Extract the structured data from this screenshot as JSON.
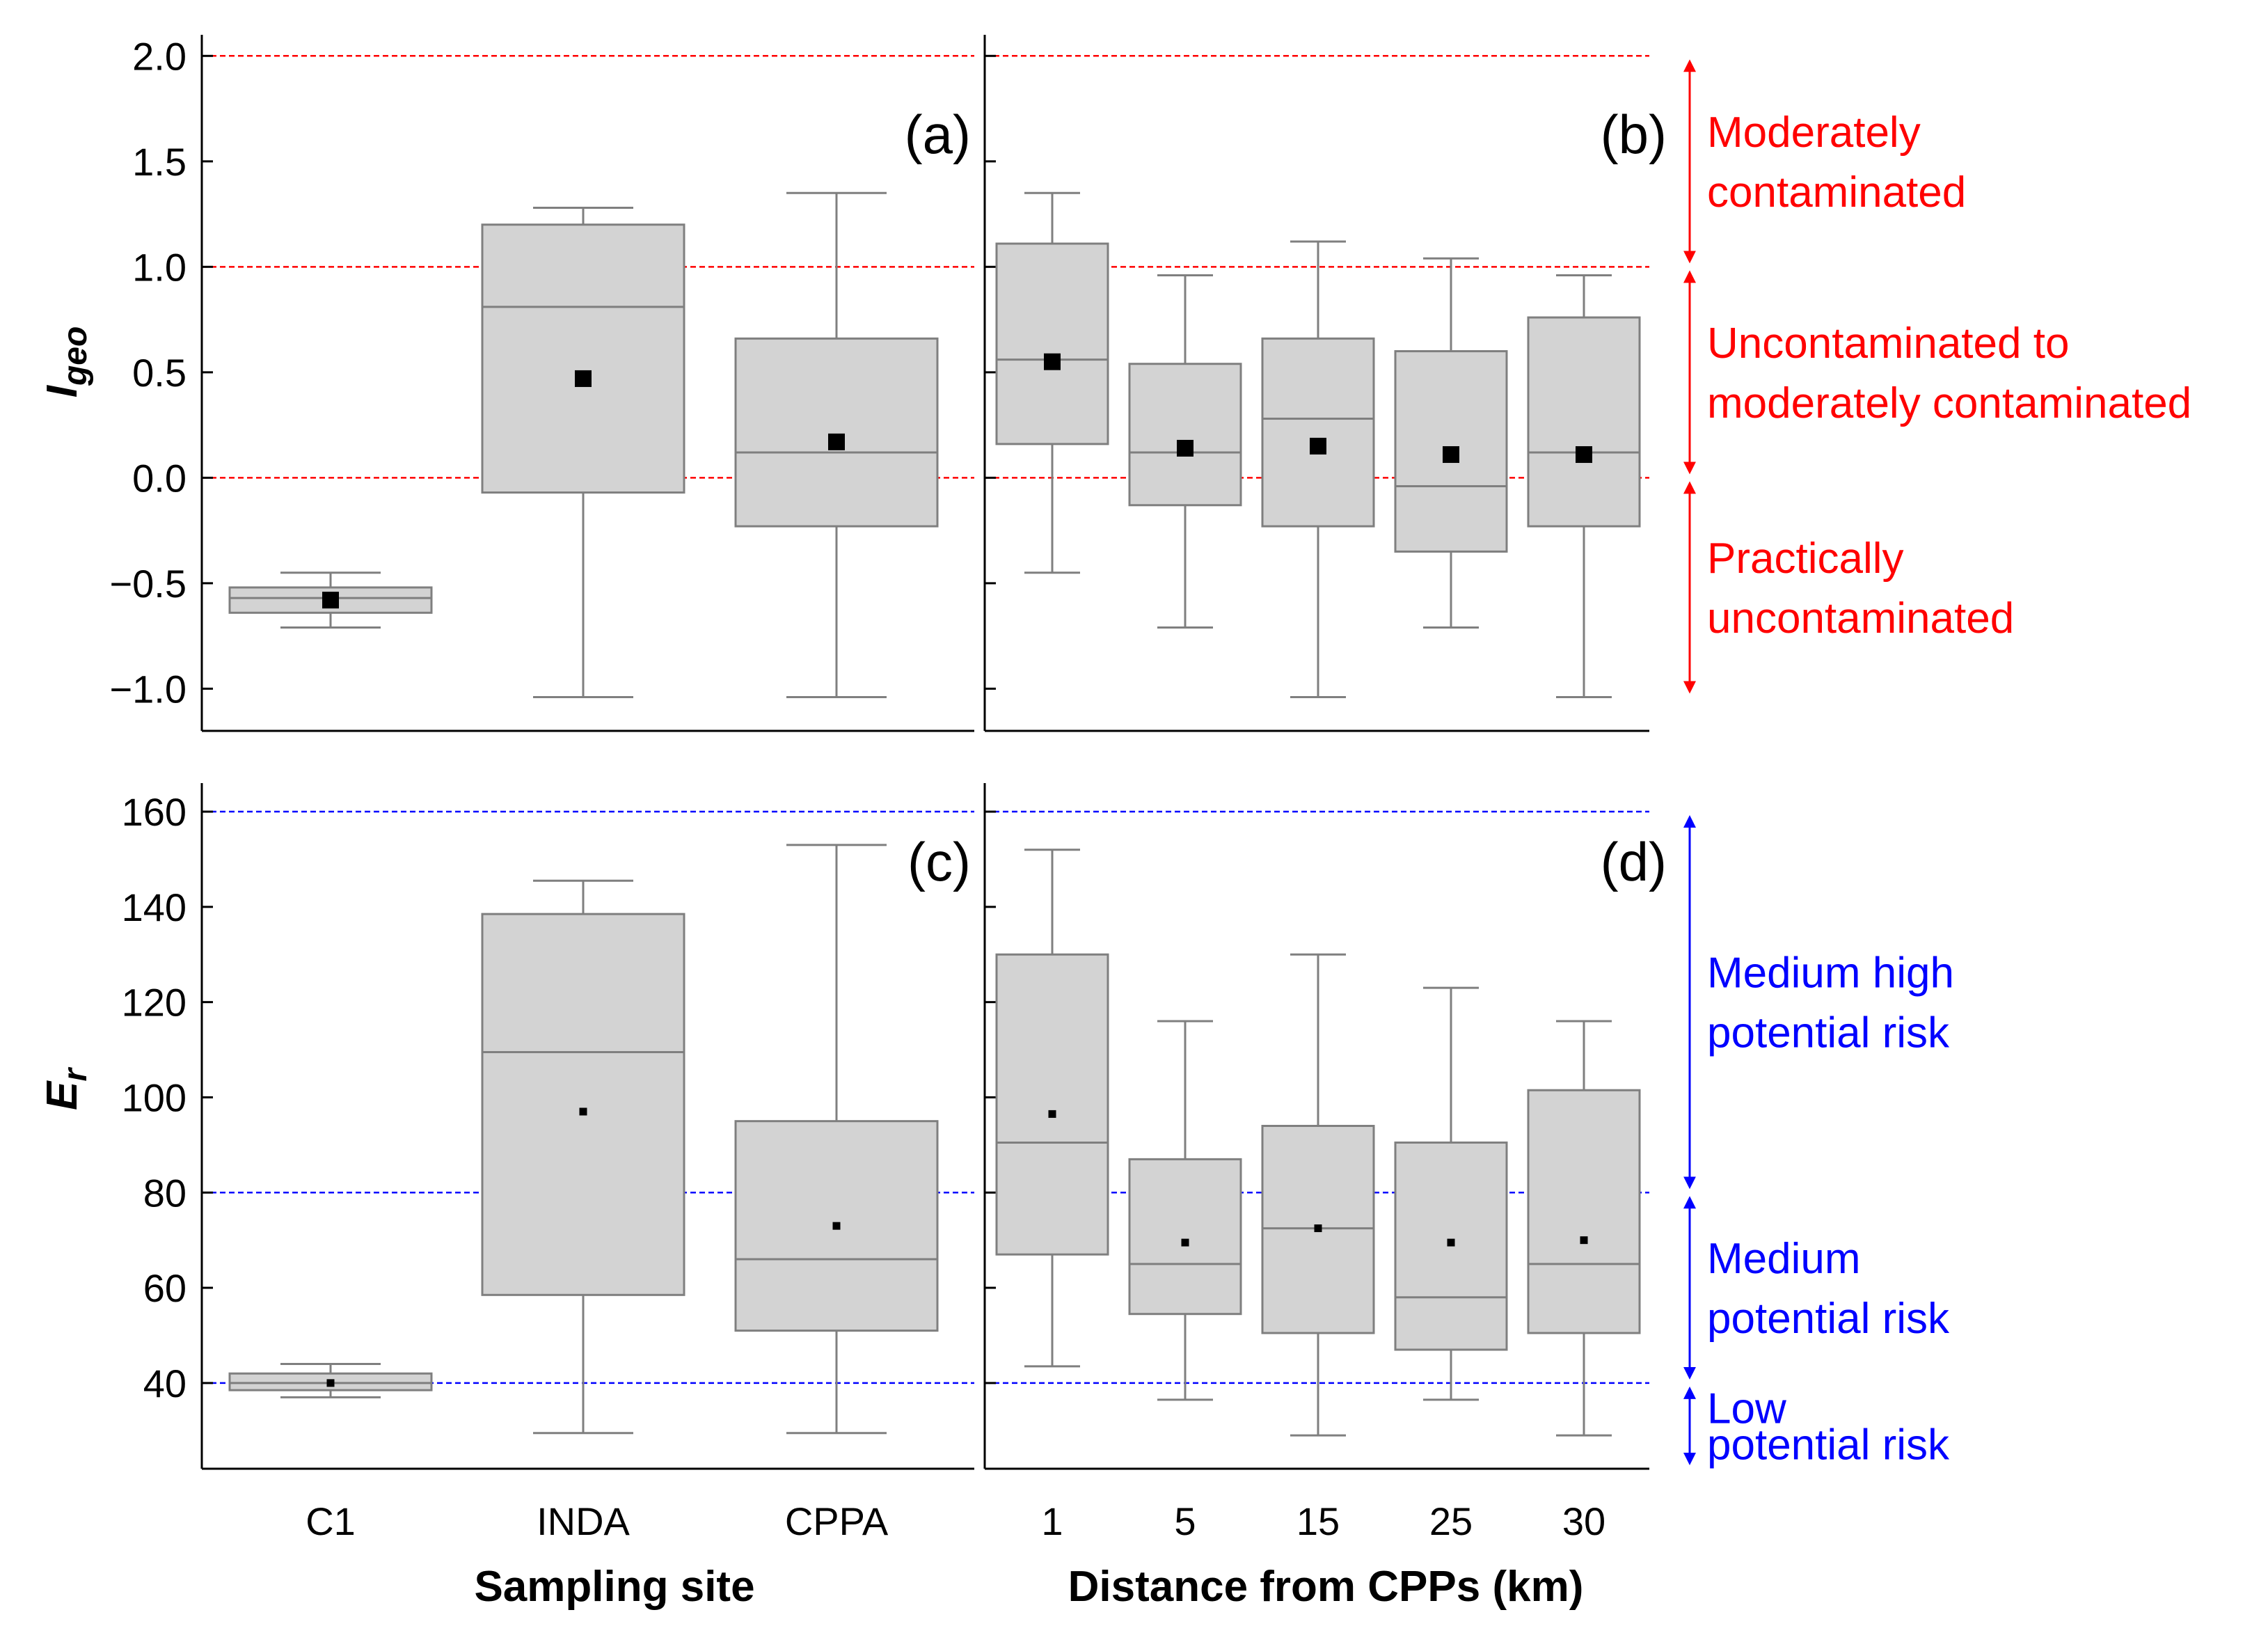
{
  "chart_data": [
    {
      "type": "box",
      "panel": "a",
      "panel_label": "(a)",
      "ylabel_main": "I",
      "ylabel_sub": "geo",
      "ylim": [
        -1.2,
        2.1
      ],
      "yticks": [
        -1.0,
        -0.5,
        0.0,
        0.5,
        1.0,
        1.5,
        2.0
      ],
      "ytick_labels": [
        "−1.0",
        "−0.5",
        "0.0",
        "0.5",
        "1.0",
        "1.5",
        "2.0"
      ],
      "threshold_lines": [
        0,
        1,
        2
      ],
      "threshold_color": "#ff0000",
      "categories": [
        "C1",
        "INDA",
        "CPPA"
      ],
      "boxes": [
        {
          "min": -0.71,
          "q1": -0.64,
          "median": -0.57,
          "q3": -0.52,
          "max": -0.45,
          "mean": -0.58
        },
        {
          "min": -1.04,
          "q1": -0.07,
          "median": 0.81,
          "q3": 1.2,
          "max": 1.28,
          "mean": 0.47
        },
        {
          "min": -1.04,
          "q1": -0.23,
          "median": 0.12,
          "q3": 0.66,
          "max": 1.35,
          "mean": 0.17
        }
      ]
    },
    {
      "type": "box",
      "panel": "b",
      "panel_label": "(b)",
      "ylim": [
        -1.2,
        2.1
      ],
      "yticks": [
        -1.0,
        -0.5,
        0.0,
        0.5,
        1.0,
        1.5,
        2.0
      ],
      "threshold_lines": [
        0,
        1,
        2
      ],
      "threshold_color": "#ff0000",
      "categories": [
        "1",
        "5",
        "15",
        "25",
        "30"
      ],
      "boxes": [
        {
          "min": -0.45,
          "q1": 0.16,
          "median": 0.56,
          "q3": 1.11,
          "max": 1.35,
          "mean": 0.55
        },
        {
          "min": -0.71,
          "q1": -0.13,
          "median": 0.12,
          "q3": 0.54,
          "max": 0.96,
          "mean": 0.14
        },
        {
          "min": -1.04,
          "q1": -0.23,
          "median": 0.28,
          "q3": 0.66,
          "max": 1.12,
          "mean": 0.15
        },
        {
          "min": -0.71,
          "q1": -0.35,
          "median": -0.04,
          "q3": 0.6,
          "max": 1.04,
          "mean": 0.11
        },
        {
          "min": -1.04,
          "q1": -0.23,
          "median": 0.12,
          "q3": 0.76,
          "max": 0.96,
          "mean": 0.11
        }
      ],
      "zones": [
        {
          "lines": [
            "Moderately",
            "contaminated"
          ],
          "from": 1,
          "to": 2
        },
        {
          "lines": [
            "Uncontaminated to",
            "moderately contaminated"
          ],
          "from": 0,
          "to": 1
        },
        {
          "lines": [
            "Practically",
            "uncontaminated"
          ],
          "from": -1.04,
          "to": 0
        }
      ]
    },
    {
      "type": "box",
      "panel": "c",
      "panel_label": "(c)",
      "ylabel_main": "E",
      "ylabel_sub": "r",
      "ylim": [
        22,
        166
      ],
      "yticks": [
        40,
        60,
        80,
        100,
        120,
        140,
        160
      ],
      "ytick_labels": [
        "40",
        "60",
        "80",
        "100",
        "120",
        "140",
        "160"
      ],
      "threshold_lines": [
        40,
        80,
        160
      ],
      "threshold_color": "#0000ff",
      "categories": [
        "C1",
        "INDA",
        "CPPA"
      ],
      "xlabel": "Sampling site",
      "boxes": [
        {
          "min": 37,
          "q1": 38.5,
          "median": 40,
          "q3": 42,
          "max": 44,
          "mean": 40
        },
        {
          "min": 29.5,
          "q1": 58.5,
          "median": 109.5,
          "q3": 138.5,
          "max": 145.5,
          "mean": 97
        },
        {
          "min": 29.5,
          "q1": 51,
          "median": 66,
          "q3": 95,
          "max": 153,
          "mean": 73
        }
      ]
    },
    {
      "type": "box",
      "panel": "d",
      "panel_label": "(d)",
      "ylim": [
        22,
        166
      ],
      "yticks": [
        40,
        60,
        80,
        100,
        120,
        140,
        160
      ],
      "threshold_lines": [
        40,
        80,
        160
      ],
      "threshold_color": "#0000ff",
      "categories": [
        "1",
        "5",
        "15",
        "25",
        "30"
      ],
      "xlabel": "Distance from CPPs (km)",
      "boxes": [
        {
          "min": 43.5,
          "q1": 67,
          "median": 90.5,
          "q3": 130,
          "max": 152,
          "mean": 96.5
        },
        {
          "min": 36.5,
          "q1": 54.5,
          "median": 65,
          "q3": 87,
          "max": 116,
          "mean": 69.5
        },
        {
          "min": 29,
          "q1": 50.5,
          "median": 72.5,
          "q3": 94,
          "max": 130,
          "mean": 72.5
        },
        {
          "min": 36.5,
          "q1": 47,
          "median": 58,
          "q3": 90.5,
          "max": 123,
          "mean": 69.5
        },
        {
          "min": 29,
          "q1": 50.5,
          "median": 65,
          "q3": 101.5,
          "max": 116,
          "mean": 70
        }
      ],
      "zones": [
        {
          "lines": [
            "Medium  high",
            "potential  risk"
          ],
          "from": 80,
          "to": 160
        },
        {
          "lines": [
            "Medium",
            "potential  risk"
          ],
          "from": 40,
          "to": 80
        },
        {
          "lines": [
            "Low",
            "potential risk"
          ],
          "from": 22,
          "to": 40
        }
      ]
    }
  ]
}
